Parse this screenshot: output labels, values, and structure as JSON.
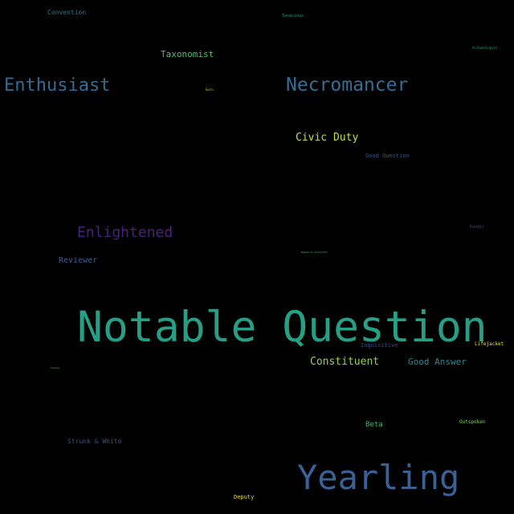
{
  "words": [
    {
      "text": "Notable Question",
      "color": "#26A085"
    },
    {
      "text": "Yearling",
      "color": "#3A6196"
    },
    {
      "text": "Necromancer",
      "color": "#336E94"
    },
    {
      "text": "Enthusiast",
      "color": "#336C93"
    },
    {
      "text": "Enlightened",
      "color": "#4A217A"
    },
    {
      "text": "Civic Duty",
      "color": "#C5DF3A"
    },
    {
      "text": "Constituent",
      "color": "#94D25A"
    },
    {
      "text": "Good Answer",
      "color": "#2E8691"
    },
    {
      "text": "Taxonomist",
      "color": "#4ABE6B"
    },
    {
      "text": "Reviewer",
      "color": "#3F5B97"
    },
    {
      "text": "Strunk & White",
      "color": "#3C4C8F"
    },
    {
      "text": "Beta",
      "color": "#3BB774"
    },
    {
      "text": "Convention",
      "color": "#2C7A93"
    },
    {
      "text": "Good Question",
      "color": "#3B528C"
    },
    {
      "text": "Inquisitive",
      "color": "#3D4D88"
    },
    {
      "text": "Lifejacket",
      "color": "#E3E224"
    },
    {
      "text": "Outspoken",
      "color": "#86CF52"
    },
    {
      "text": "Deputy",
      "color": "#E8D73C"
    },
    {
      "text": "Tenacious",
      "color": "#2A9A86"
    },
    {
      "text": "Archaeologist",
      "color": "#29A082"
    },
    {
      "text": "Pundit",
      "color": "#3B4F8B"
    },
    {
      "text": "Guru",
      "color": "#DCD43A"
    },
    {
      "text": "Research Assistant",
      "color": "#4FC064"
    },
    {
      "text": "Yellow",
      "color": "#4FC264"
    }
  ]
}
